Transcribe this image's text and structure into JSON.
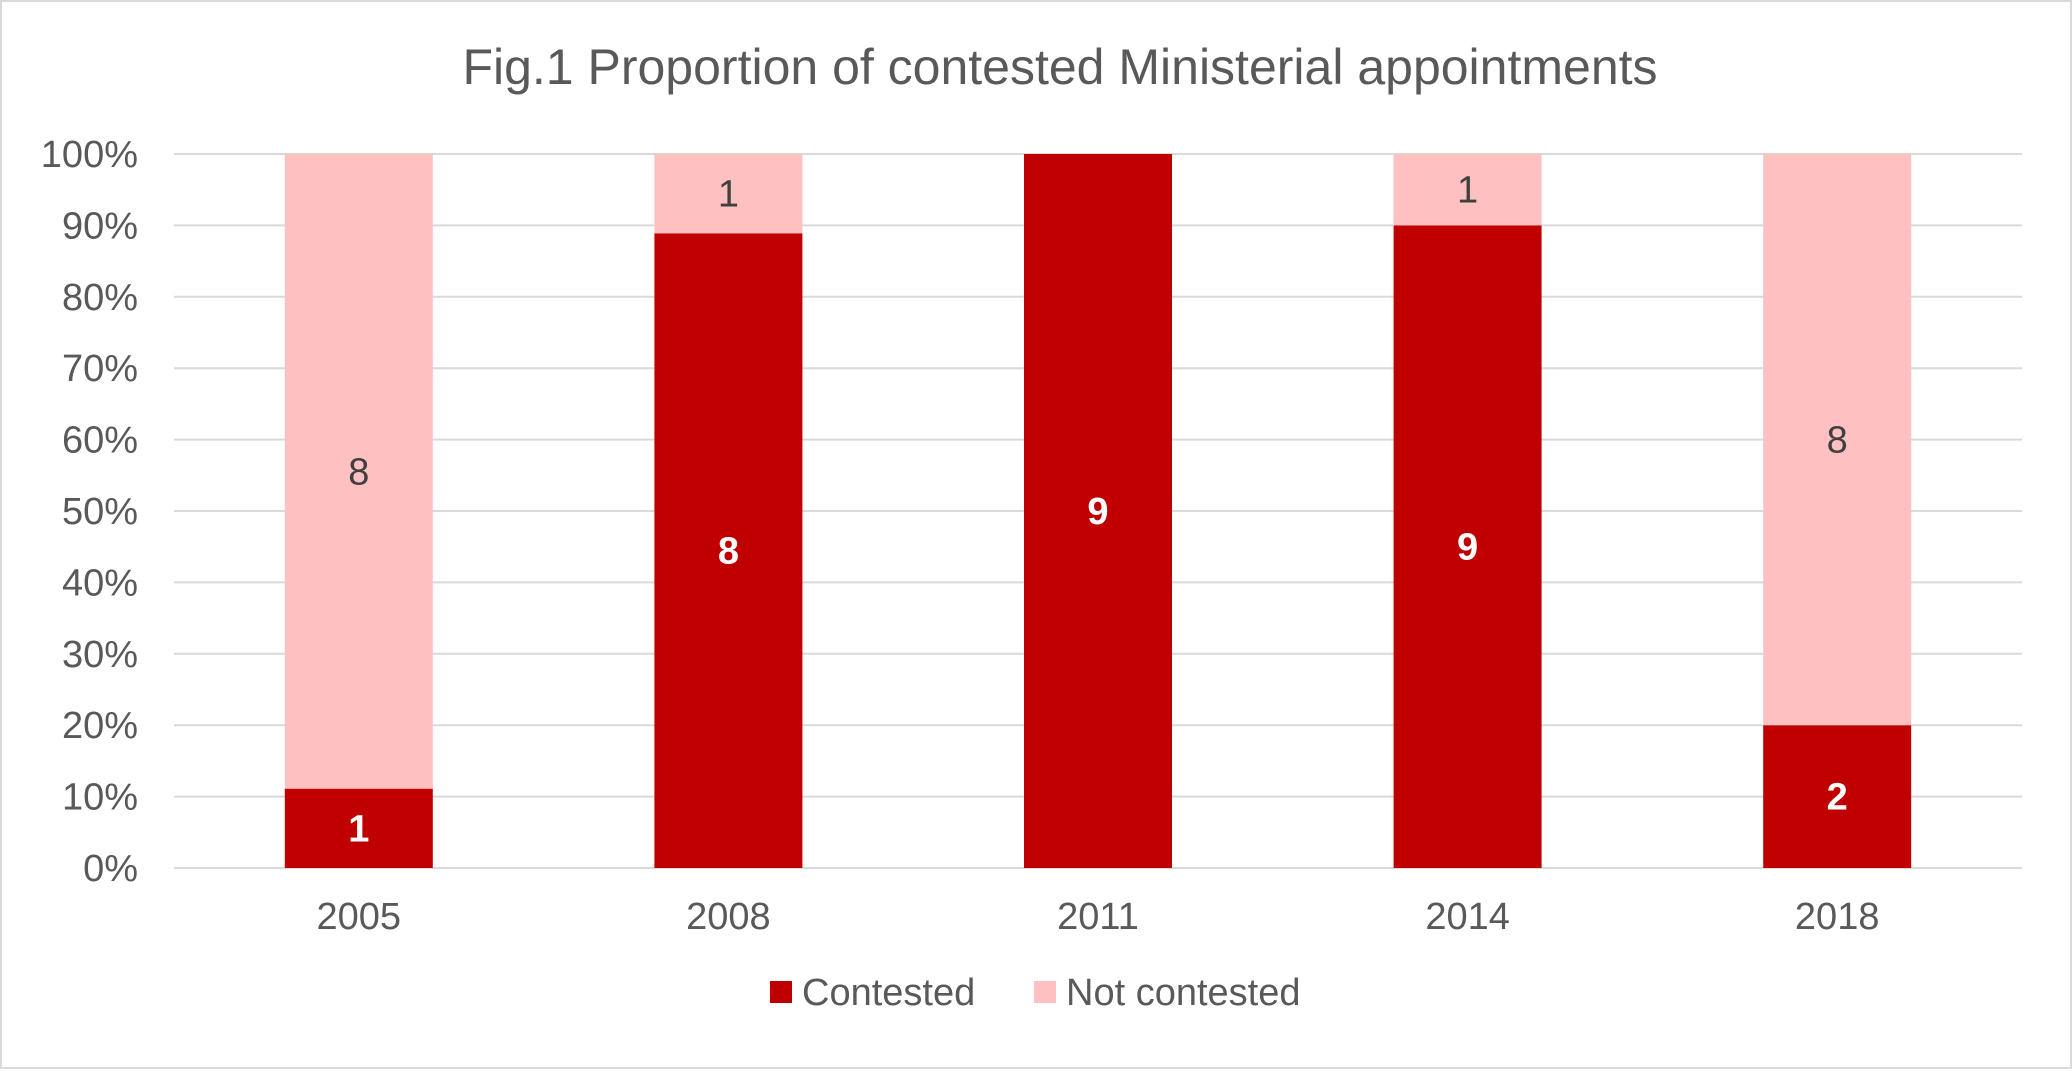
{
  "chart_data": {
    "type": "bar",
    "stacked": "percent",
    "title": "Fig.1 Proportion of contested Ministerial appointments",
    "xlabel": "",
    "ylabel": "",
    "categories": [
      "2005",
      "2008",
      "2011",
      "2014",
      "2018"
    ],
    "series": [
      {
        "name": "Contested",
        "values": [
          1,
          8,
          9,
          9,
          2
        ],
        "color": "#c00000",
        "labels": [
          "1",
          "8",
          "9",
          "9",
          "2"
        ]
      },
      {
        "name": "Not contested",
        "values": [
          8,
          1,
          0,
          1,
          8
        ],
        "color": "#ffc0c1",
        "labels": [
          "8",
          "1",
          "",
          "1",
          "8"
        ]
      }
    ],
    "ylim": [
      0,
      100
    ],
    "y_ticks": [
      "0%",
      "10%",
      "20%",
      "30%",
      "40%",
      "50%",
      "60%",
      "70%",
      "80%",
      "90%",
      "100%"
    ],
    "grid": true,
    "legend": "bottom"
  }
}
